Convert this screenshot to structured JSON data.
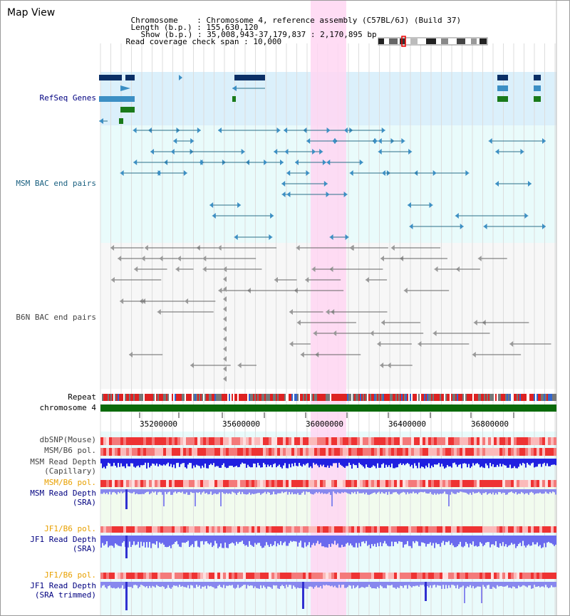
{
  "page_title": "Map View",
  "info": {
    "chromosome_label": "Chromosome",
    "chromosome_value": "Chromosome 4, reference assembly (C57BL/6J) (Build 37)",
    "length_label": "Length (b.p.)",
    "length_value": "155,630,120",
    "show_label": "Show (b.p.)",
    "show_value": "35,008,943-37,179,837 : 2,170,895 bp",
    "coverage_label": "Read coverage check span",
    "coverage_value": "10,000"
  },
  "tracks": {
    "refseq": "RefSeq Genes",
    "msm_bac": "MSM BAC end pairs",
    "b6n_bac": "B6N BAC end pairs",
    "repeat": "Repeat",
    "chromosome": "chromosome 4"
  },
  "ruler": {
    "ticks": [
      "35200000",
      "35600000",
      "36000000",
      "36400000",
      "36800000"
    ]
  },
  "lower_tracks": {
    "dbsnp": "dbSNP(Mouse)",
    "msm_b6_pol_1": "MSM/B6 pol.",
    "msm_capillary_1": "MSM Read Depth",
    "msm_capillary_2": "(Capillary)",
    "msm_b6_pol_2": "MSM/B6 pol.",
    "msm_sra_1": "MSM Read Depth",
    "msm_sra_2": "(SRA)",
    "jf1_b6_pol_1": "JF1/B6 pol.",
    "jf1_sra_1": "JF1 Read Depth",
    "jf1_sra_2": "(SRA)",
    "jf1_b6_pol_2": "JF1/B6 pol.",
    "jf1_trim_1": "JF1 Read Depth",
    "jf1_trim_2": "(SRA trimmed)"
  },
  "colors": {
    "highlight": "#ffd6f2",
    "refseq_bg": "#dbf0fb",
    "bac_bg": "#e9fbfb",
    "gene_dark": "#0a2f66",
    "gene_mid": "#3c8fc4",
    "gene_green": "#1a7a1a",
    "msm_line": "#2a6f8a",
    "b6n_line": "#666666",
    "chromosome_bar": "#0a6a0a",
    "snp_red": "#ee3333",
    "depth_blue": "#2020e0",
    "label_navy": "#000080",
    "label_orange": "#e8a000"
  }
}
